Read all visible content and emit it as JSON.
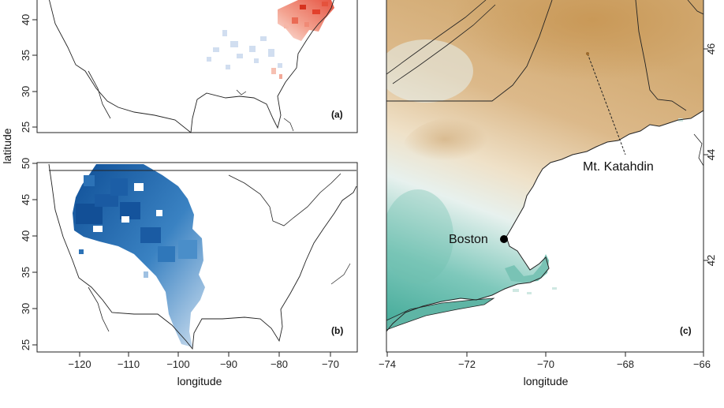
{
  "figure": {
    "ylabel": "latitude",
    "panels": [
      {
        "id": "a",
        "tag": "(a)",
        "yticks": [
          25,
          30,
          35,
          40
        ],
        "ylim": [
          24,
          44
        ],
        "xlim": [
          -128,
          -65
        ],
        "color_scheme": "diverging red/blue",
        "accent_color": "#e2402c"
      },
      {
        "id": "b",
        "tag": "(b)",
        "yticks": [
          25,
          30,
          35,
          40,
          45,
          50
        ],
        "ylim": [
          24,
          50
        ],
        "xlim": [
          -128,
          -65
        ],
        "xticks": [
          -120,
          -110,
          -100,
          -90,
          -80,
          -70
        ],
        "xlabel": "longitude",
        "color_scheme": "blues",
        "accent_color": "#1b5fa8"
      },
      {
        "id": "c",
        "tag": "(c)",
        "xlim": [
          -74,
          -66
        ],
        "ylim": [
          40.5,
          46.8
        ],
        "xticks": [
          -74,
          -72,
          -70,
          -68,
          -66
        ],
        "yticks_right": [
          42,
          44,
          46
        ],
        "xlabel": "longitude",
        "color_scheme": "teal-to-tan elevation",
        "low_color": "#4fb3a2",
        "high_color": "#c8974f"
      }
    ],
    "places": [
      {
        "name": "Boston",
        "lon": -71.06,
        "lat": 42.36
      },
      {
        "name": "Mt. Katahdin",
        "lon": -68.92,
        "lat": 45.9
      }
    ]
  }
}
